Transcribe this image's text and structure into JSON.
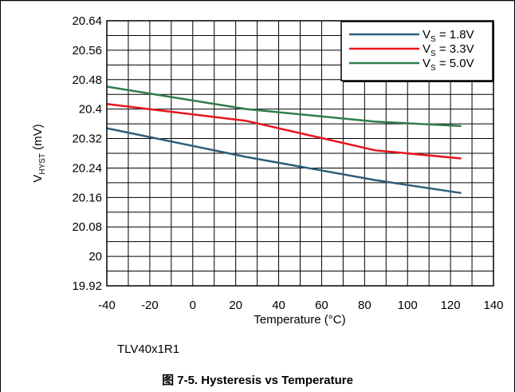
{
  "chart_data": {
    "type": "line",
    "xlabel": "Temperature (°C)",
    "ylabel": {
      "main": "V",
      "sub": "HYST",
      "unit": " (mV)"
    },
    "xlim": [
      -40,
      140
    ],
    "ylim": [
      19.92,
      20.64
    ],
    "x_ticks": [
      "-40",
      "-20",
      "0",
      "20",
      "40",
      "60",
      "80",
      "100",
      "120",
      "140"
    ],
    "y_ticks": [
      "20.64",
      "20.56",
      "20.48",
      "20.4",
      "20.32",
      "20.24",
      "20.16",
      "20.08",
      "20",
      "19.92"
    ],
    "grid": true,
    "legend_position": "top-right",
    "series": [
      {
        "label_main": "V",
        "label_sub": "S",
        "label_rest": " = 1.8V",
        "color": "#2e5e78",
        "x": [
          -40,
          25,
          85,
          125
        ],
        "y": [
          20.348,
          20.27,
          20.207,
          20.172
        ]
      },
      {
        "label_main": "V",
        "label_sub": "S",
        "label_rest": " = 3.3V",
        "color": "#e8141c",
        "x": [
          -40,
          25,
          85,
          125
        ],
        "y": [
          20.414,
          20.368,
          20.288,
          20.266
        ]
      },
      {
        "label_main": "V",
        "label_sub": "S",
        "label_rest": " = 5.0V",
        "color": "#2f7d4a",
        "x": [
          -40,
          25,
          85,
          125
        ],
        "y": [
          20.461,
          20.4,
          20.366,
          20.354
        ]
      }
    ]
  },
  "device_note": "TLV40x1R1",
  "caption": "图 7-5. Hysteresis vs Temperature"
}
